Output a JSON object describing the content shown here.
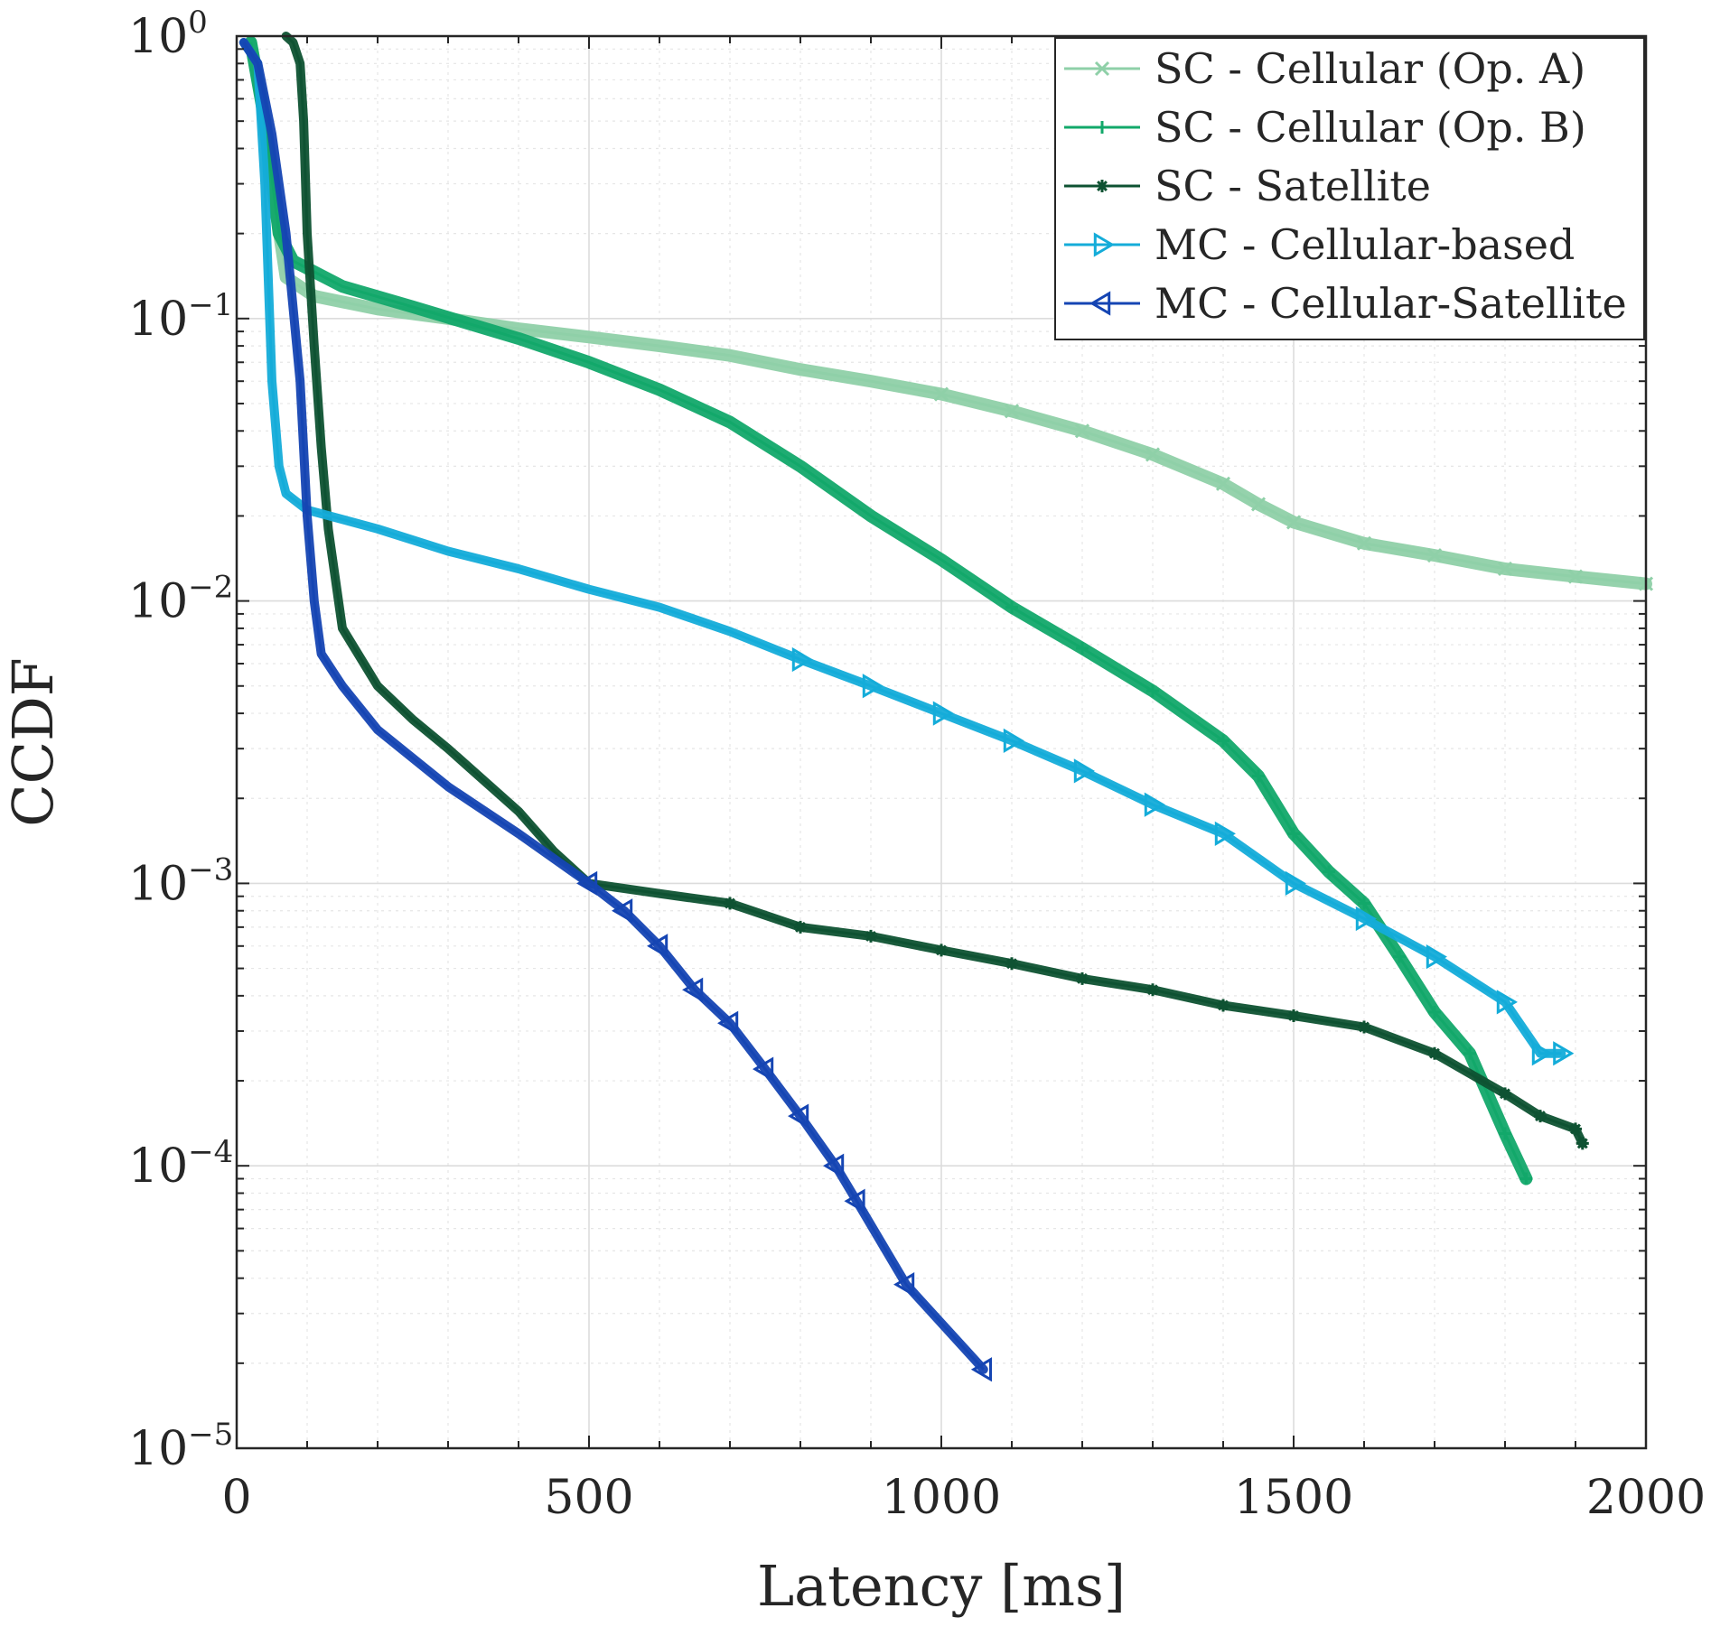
{
  "chart_data": {
    "type": "line",
    "xlabel": "Latency [ms]",
    "ylabel": "CCDF",
    "xscale": "linear",
    "yscale": "log",
    "xlim": [
      0,
      2000
    ],
    "ylim": [
      1e-05,
      1
    ],
    "xticks": [
      {
        "value": 0,
        "label": "0"
      },
      {
        "value": 500,
        "label": "500"
      },
      {
        "value": 1000,
        "label": "1000"
      },
      {
        "value": 1500,
        "label": "1500"
      },
      {
        "value": 2000,
        "label": "2000"
      }
    ],
    "yticks": [
      {
        "value": 1,
        "base": "10",
        "exp": "0"
      },
      {
        "value": 0.1,
        "base": "10",
        "exp": "−1"
      },
      {
        "value": 0.01,
        "base": "10",
        "exp": "−2"
      },
      {
        "value": 0.001,
        "base": "10",
        "exp": "−3"
      },
      {
        "value": 0.0001,
        "base": "10",
        "exp": "−4"
      },
      {
        "value": 1e-05,
        "base": "10",
        "exp": "−5"
      }
    ],
    "grid": true,
    "legend_position": "top-right",
    "series": [
      {
        "name": "SC - Cellular (Op. A)",
        "color": "#8fd0a8",
        "marker": "x",
        "points": [
          [
            20,
            0.95
          ],
          [
            35,
            0.6
          ],
          [
            50,
            0.3
          ],
          [
            70,
            0.14
          ],
          [
            110,
            0.12
          ],
          [
            200,
            0.108
          ],
          [
            300,
            0.1
          ],
          [
            400,
            0.092
          ],
          [
            500,
            0.086
          ],
          [
            600,
            0.08
          ],
          [
            700,
            0.074
          ],
          [
            800,
            0.066
          ],
          [
            900,
            0.06
          ],
          [
            1000,
            0.054
          ],
          [
            1100,
            0.047
          ],
          [
            1200,
            0.04
          ],
          [
            1300,
            0.033
          ],
          [
            1400,
            0.026
          ],
          [
            1450,
            0.022
          ],
          [
            1500,
            0.019
          ],
          [
            1600,
            0.016
          ],
          [
            1700,
            0.0145
          ],
          [
            1800,
            0.013
          ],
          [
            1900,
            0.0122
          ],
          [
            2000,
            0.0115
          ]
        ]
      },
      {
        "name": "SC - Cellular (Op. B)",
        "color": "#12a86a",
        "marker": "+",
        "points": [
          [
            20,
            0.95
          ],
          [
            40,
            0.5
          ],
          [
            60,
            0.2
          ],
          [
            80,
            0.16
          ],
          [
            150,
            0.13
          ],
          [
            250,
            0.11
          ],
          [
            400,
            0.085
          ],
          [
            500,
            0.07
          ],
          [
            600,
            0.056
          ],
          [
            700,
            0.043
          ],
          [
            800,
            0.03
          ],
          [
            900,
            0.02
          ],
          [
            1000,
            0.014
          ],
          [
            1100,
            0.0095
          ],
          [
            1200,
            0.0068
          ],
          [
            1300,
            0.0048
          ],
          [
            1400,
            0.0032
          ],
          [
            1450,
            0.0024
          ],
          [
            1500,
            0.0015
          ],
          [
            1550,
            0.0011
          ],
          [
            1600,
            0.00085
          ],
          [
            1650,
            0.00055
          ],
          [
            1700,
            0.00035
          ],
          [
            1750,
            0.00025
          ],
          [
            1800,
            0.00013
          ],
          [
            1830,
            9e-05
          ]
        ]
      },
      {
        "name": "SC - Satellite",
        "color": "#0e5232",
        "marker": "*",
        "points": [
          [
            70,
            1
          ],
          [
            80,
            0.95
          ],
          [
            90,
            0.8
          ],
          [
            95,
            0.5
          ],
          [
            100,
            0.2
          ],
          [
            110,
            0.08
          ],
          [
            120,
            0.035
          ],
          [
            130,
            0.018
          ],
          [
            150,
            0.008
          ],
          [
            200,
            0.005
          ],
          [
            250,
            0.0038
          ],
          [
            300,
            0.003
          ],
          [
            400,
            0.0018
          ],
          [
            450,
            0.0013
          ],
          [
            500,
            0.001
          ],
          [
            600,
            0.00092
          ],
          [
            700,
            0.00085
          ],
          [
            800,
            0.0007
          ],
          [
            900,
            0.00065
          ],
          [
            1000,
            0.00058
          ],
          [
            1100,
            0.00052
          ],
          [
            1200,
            0.00046
          ],
          [
            1300,
            0.00042
          ],
          [
            1400,
            0.00037
          ],
          [
            1500,
            0.00034
          ],
          [
            1600,
            0.00031
          ],
          [
            1700,
            0.00025
          ],
          [
            1800,
            0.00018
          ],
          [
            1850,
            0.00015
          ],
          [
            1900,
            0.000135
          ],
          [
            1910,
            0.00012
          ]
        ]
      },
      {
        "name": "MC - Cellular-based",
        "color": "#14acd9",
        "marker": "triangle-right",
        "points": [
          [
            10,
            0.95
          ],
          [
            30,
            0.8
          ],
          [
            40,
            0.3
          ],
          [
            50,
            0.06
          ],
          [
            60,
            0.03
          ],
          [
            70,
            0.024
          ],
          [
            100,
            0.021
          ],
          [
            200,
            0.018
          ],
          [
            300,
            0.015
          ],
          [
            400,
            0.013
          ],
          [
            500,
            0.011
          ],
          [
            600,
            0.0095
          ],
          [
            700,
            0.0078
          ],
          [
            800,
            0.0062
          ],
          [
            900,
            0.005
          ],
          [
            1000,
            0.004
          ],
          [
            1100,
            0.0032
          ],
          [
            1200,
            0.0025
          ],
          [
            1300,
            0.0019
          ],
          [
            1400,
            0.0015
          ],
          [
            1500,
            0.001
          ],
          [
            1600,
            0.00075
          ],
          [
            1700,
            0.00055
          ],
          [
            1800,
            0.00038
          ],
          [
            1850,
            0.00025
          ],
          [
            1880,
            0.00025
          ]
        ]
      },
      {
        "name": "MC - Cellular-Satellite",
        "color": "#1545b3",
        "marker": "triangle-left",
        "points": [
          [
            10,
            0.95
          ],
          [
            30,
            0.8
          ],
          [
            50,
            0.45
          ],
          [
            70,
            0.2
          ],
          [
            90,
            0.06
          ],
          [
            100,
            0.02
          ],
          [
            110,
            0.01
          ],
          [
            120,
            0.0065
          ],
          [
            150,
            0.005
          ],
          [
            200,
            0.0035
          ],
          [
            300,
            0.0022
          ],
          [
            400,
            0.0015
          ],
          [
            500,
            0.001
          ],
          [
            550,
            0.0008
          ],
          [
            600,
            0.0006
          ],
          [
            650,
            0.00042
          ],
          [
            700,
            0.00032
          ],
          [
            750,
            0.00022
          ],
          [
            800,
            0.00015
          ],
          [
            850,
            0.0001
          ],
          [
            880,
            7.5e-05
          ],
          [
            950,
            3.8e-05
          ],
          [
            1060,
            1.9e-05
          ]
        ]
      }
    ]
  }
}
